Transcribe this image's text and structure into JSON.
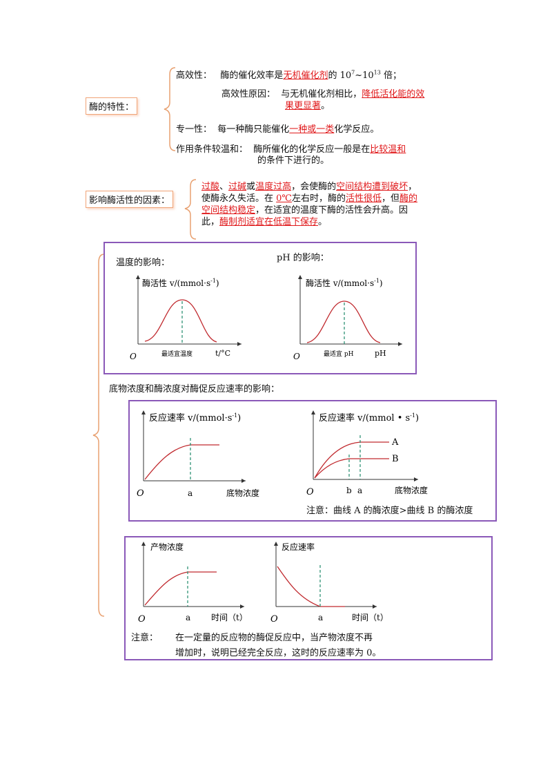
{
  "traits": {
    "label": "酶的特性：",
    "high_eff": {
      "head": "高效性：",
      "pre": "酶的催化效率是",
      "red": "无机催化剂",
      "post": "的 10",
      "sup1": "7",
      "mid": "~10",
      "sup2": "13",
      "end": " 倍；"
    },
    "high_eff_reason": {
      "head": "高效性原因：",
      "pre": "与无机催化剂相比，",
      "red1": "降低活化能的效",
      "red2": "果更显著",
      "end": "。"
    },
    "specific": {
      "head": "专一性：",
      "pre": "每一种酶只能催化",
      "red": "一种或一类",
      "end": "化学反应。"
    },
    "mild": {
      "head": "作用条件较温和：",
      "pre": "酶所催化的化学反应一般是在",
      "red": "比较温和",
      "line2": "的条件下进行的。"
    }
  },
  "factors": {
    "label": "影响酶活性的因素：",
    "l1_r1": "过酸",
    "l1_t1": "、",
    "l1_r2": "过碱",
    "l1_t2": "或",
    "l1_r3": "温度过高",
    "l1_t3": "，会使酶的",
    "l1_r4": "空间结构遭到破坏",
    "l1_t4": "，",
    "l2_t1": "使酶永久失活。在 ",
    "l2_r1": "0℃",
    "l2_t2": "左右时，酶的",
    "l2_r2": "活性很低",
    "l2_t3": "，但",
    "l2_r3": "酶的",
    "l3_r1": "空间结构稳定",
    "l3_t1": "，在适宜的温度下酶的活性会升高。因",
    "l4_t1": "此，",
    "l4_r1": "酶制剂适宜在低温下保存",
    "l4_t2": "。"
  },
  "panel1": {
    "temp_title": "温度的影响：",
    "ph_title": "pH 的影响：",
    "temp_chart": {
      "ylabel": "酶活性 v/(mmol·s",
      "ylabel_sup": "-1",
      "ylabel_end": ")",
      "origin": "O",
      "xlabel": "t/°C",
      "opt_label": "最适宜温度"
    },
    "ph_chart": {
      "ylabel": "酶活性 v/(mmol·s",
      "ylabel_sup": "-1",
      "ylabel_end": ")",
      "origin": "O",
      "xlabel": "pH",
      "opt_label": "最适宜 pH"
    }
  },
  "section2_title": "底物浓度和酶浓度对酶促反应速率的影响：",
  "panel2": {
    "left": {
      "ylabel": "反应速率 v/(mmol·s",
      "ylabel_sup": "-1",
      "ylabel_end": ")",
      "origin": "O",
      "a": "a",
      "xlabel": "底物浓度"
    },
    "right": {
      "ylabel": "反应速率 v/(mmol • s",
      "ylabel_sup": "-1",
      "ylabel_end": ")",
      "origin": "O",
      "b": "b",
      "a": "a",
      "A": "A",
      "B": "B",
      "xlabel": "底物浓度"
    },
    "note": "注意：曲线 A 的酶浓度>曲线 B 的酶浓度"
  },
  "panel3": {
    "left": {
      "ylabel": "产物浓度",
      "origin": "O",
      "a": "a",
      "xlabel": "时间（t）"
    },
    "right": {
      "ylabel": "反应速率",
      "origin": "O",
      "a": "a",
      "xlabel": "时间（t）"
    },
    "note_head": "注意：",
    "note_l1": "在一定量的反应物的酶促反应中，当产物浓度不再",
    "note_l2": "增加时，说明已经完全反应，这时的反应速率为 0。"
  },
  "colors": {
    "curve": "#c0292e",
    "dash": "#1f8a6a",
    "panel_border": "#8a58b8",
    "label_border": "#f0a477",
    "brace": "#e8a070",
    "red_text": "#e0191b"
  }
}
